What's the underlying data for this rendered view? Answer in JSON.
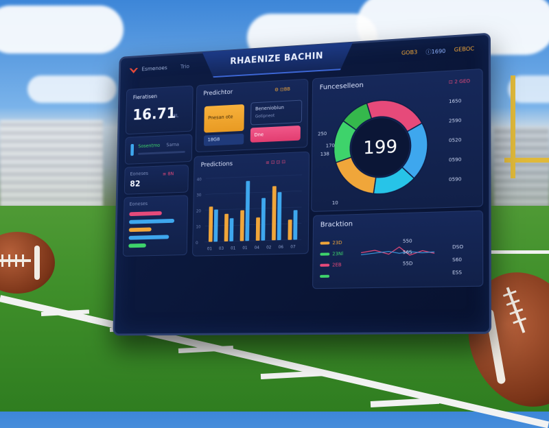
{
  "header": {
    "title": "RHAENIZE BACHIN",
    "brand": "Esmenoes",
    "icons_text": "Trio",
    "right_a": "GOB3",
    "right_b": "ⓘ1690",
    "right_c": "GEBOC"
  },
  "stat1": {
    "title": "Fieratisen",
    "value": "16.71",
    "sub": "8L"
  },
  "stat2": {
    "label_a": "Sosentmo",
    "label_b": "Sarna"
  },
  "stat3": {
    "label": "Eoneses",
    "value": "82",
    "tag": "≡ 8N"
  },
  "list": {
    "title": "Eoneses",
    "colors": [
      "#e64a7a",
      "#3ea7ee",
      "#f0a63a",
      "#3ea7ee",
      "#3ed36b"
    ],
    "fractions": [
      0.65,
      0.9,
      0.45,
      0.8,
      0.35
    ]
  },
  "prediction": {
    "title": "Predichtor",
    "icons": "⚙ ⊡BB",
    "orange_text": "Pnesan ote",
    "blue_text": "18G8",
    "right_label": "Beneniobiun",
    "right_sub": "Gotipneot",
    "pink_text": "Dne"
  },
  "donut": {
    "title": "Funceselleon",
    "value": "199",
    "labels_right": [
      "⊡ 2 GEO",
      "1650",
      "2590",
      "0520",
      "0590",
      "0590"
    ],
    "labels_left": [
      "250",
      "170",
      "138",
      "10"
    ],
    "segment_colors": [
      "#e64a7a",
      "#3ea7ee",
      "#27c4e8",
      "#f0a63a",
      "#3ed36b",
      "#35b84c"
    ],
    "segment_values": [
      22,
      20,
      15,
      18,
      15,
      10
    ]
  },
  "predictions": {
    "title": "Predictions",
    "icons": "≡ ⊡ ⊡ ⊡",
    "ticks": [
      "01",
      "03",
      "01",
      "01",
      "04",
      "02",
      "06",
      "07"
    ],
    "left_ticks": [
      "40",
      "30",
      "20",
      "10",
      "0"
    ],
    "blue": [
      42,
      30,
      78,
      55,
      62,
      38
    ],
    "orange": [
      46,
      36,
      40,
      30,
      70,
      26
    ]
  },
  "bracket": {
    "title": "Bracktion",
    "rows": [
      {
        "left": "23D",
        "right": "550",
        "color": "#f0a63a"
      },
      {
        "left": "23Nl",
        "right": "56S",
        "color": "#3ed36b"
      },
      {
        "left": "2EB",
        "right": "55D",
        "color": "#e64a7a"
      },
      {
        "left": "",
        "right": "",
        "color": "#3ed36b"
      }
    ],
    "far_right": [
      "DSO",
      "S60",
      "ESS"
    ]
  },
  "colors": {
    "accent_blue": "#3ea7ee",
    "accent_orange": "#f0a63a",
    "accent_pink": "#e64a7a",
    "accent_green": "#3ed36b",
    "panel_bg": "#0e1d45"
  }
}
